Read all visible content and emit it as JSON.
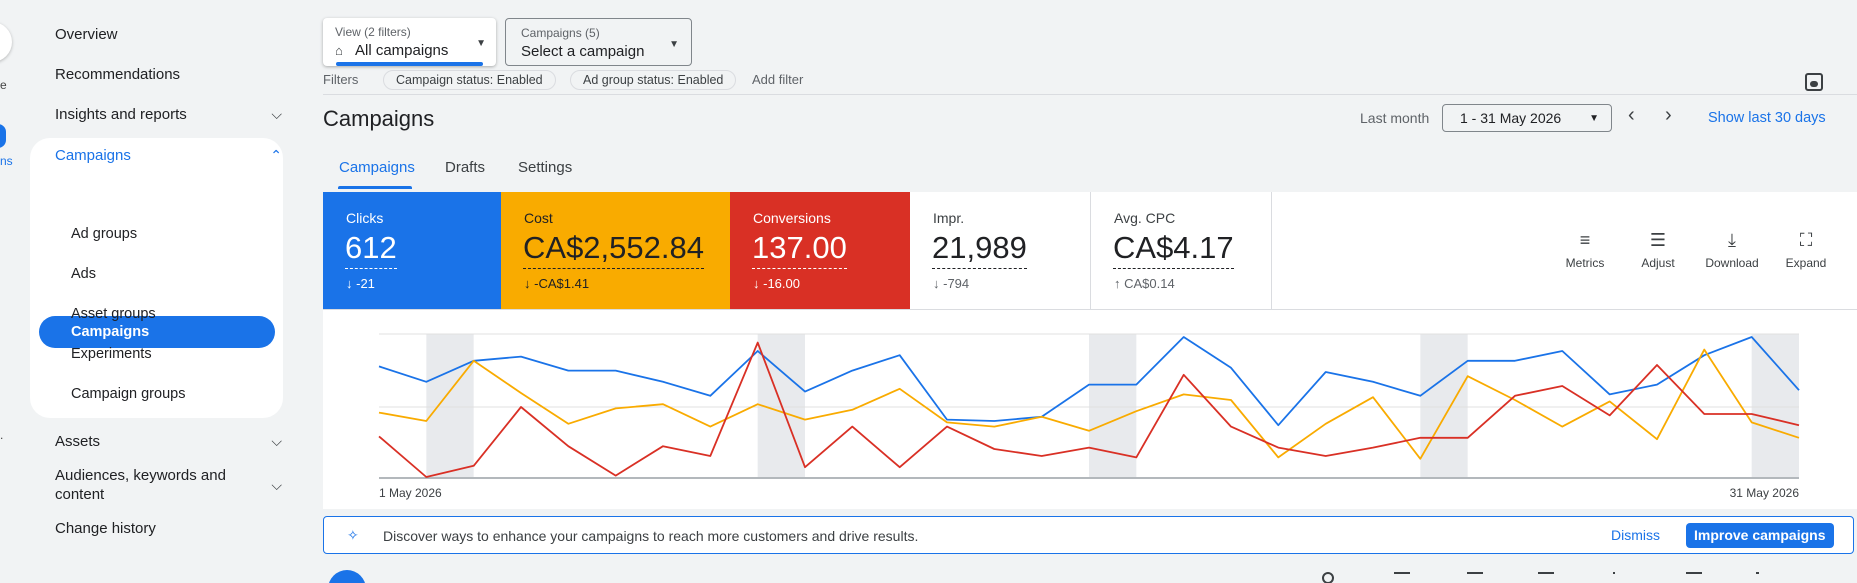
{
  "rail": {
    "text1": "e",
    "text2": "ns",
    "text3": "."
  },
  "sidebar": {
    "overview": "Overview",
    "recommendations": "Recommendations",
    "insights": "Insights and reports",
    "campaigns_group": "Campaigns",
    "sub_items": [
      "Campaigns",
      "Ad groups",
      "Ads",
      "Asset groups",
      "Experiments",
      "Campaign groups"
    ],
    "assets": "Assets",
    "audiences": [
      "Audiences, keywords and",
      "content"
    ],
    "change_history": "Change history"
  },
  "view_selector": {
    "label": "View (2 filters)",
    "value": "All campaigns"
  },
  "campaign_selector": {
    "label": "Campaigns (5)",
    "value": "Select a campaign"
  },
  "filters": {
    "label": "Filters",
    "chips": [
      "Campaign status: Enabled",
      "Ad group status: Enabled"
    ],
    "add": "Add filter"
  },
  "header": {
    "title": "Campaigns",
    "range_label": "Last month",
    "date_range": "1 - 31 May 2026",
    "show_last": "Show last 30 days"
  },
  "tabs": [
    "Campaigns",
    "Drafts",
    "Settings"
  ],
  "scorecards": [
    {
      "name": "Clicks",
      "value": "612",
      "delta": "-21",
      "direction": "down",
      "color": "#1a73e8"
    },
    {
      "name": "Cost",
      "value": "CA$2,552.84",
      "delta": "-CA$1.41",
      "direction": "down",
      "color": "#f9ab00"
    },
    {
      "name": "Conversions",
      "value": "137.00",
      "delta": "-16.00",
      "direction": "down",
      "color": "#d93025"
    },
    {
      "name": "Impr.",
      "value": "21,989",
      "delta": "-794",
      "direction": "down",
      "color": "#ffffff"
    },
    {
      "name": "Avg. CPC",
      "value": "CA$4.17",
      "delta": "CA$0.14",
      "direction": "up",
      "color": "#ffffff"
    }
  ],
  "tools": [
    "Metrics",
    "Adjust",
    "Download",
    "Expand"
  ],
  "chart_data": {
    "type": "line",
    "x_start_label": "1 May 2026",
    "x_end_label": "31 May 2026",
    "days": 31,
    "weekend_bands": [
      2,
      9,
      16,
      23,
      30
    ],
    "ylim": [
      0,
      1
    ],
    "series": [
      {
        "color": "#1a73e8",
        "values": [
          0.79,
          0.68,
          0.83,
          0.86,
          0.76,
          0.76,
          0.68,
          0.58,
          0.9,
          0.61,
          0.76,
          0.87,
          0.41,
          0.4,
          0.43,
          0.66,
          0.66,
          1.0,
          0.78,
          0.37,
          0.75,
          0.68,
          0.58,
          0.83,
          0.83,
          0.9,
          0.59,
          0.66,
          0.87,
          1.0,
          0.62
        ]
      },
      {
        "color": "#f9ab00",
        "values": [
          0.46,
          0.4,
          0.83,
          0.6,
          0.38,
          0.49,
          0.52,
          0.36,
          0.52,
          0.41,
          0.48,
          0.63,
          0.39,
          0.36,
          0.43,
          0.33,
          0.47,
          0.59,
          0.55,
          0.14,
          0.38,
          0.57,
          0.13,
          0.72,
          0.55,
          0.36,
          0.54,
          0.27,
          0.91,
          0.39,
          0.28
        ]
      },
      {
        "color": "#d93025",
        "values": [
          0.29,
          0.0,
          0.08,
          0.5,
          0.22,
          0.01,
          0.22,
          0.15,
          0.96,
          0.07,
          0.36,
          0.07,
          0.36,
          0.2,
          0.15,
          0.21,
          0.14,
          0.73,
          0.36,
          0.21,
          0.15,
          0.21,
          0.28,
          0.28,
          0.58,
          0.65,
          0.44,
          0.8,
          0.45,
          0.45,
          0.37
        ]
      }
    ]
  },
  "banner": {
    "message": "Discover ways to enhance your campaigns to reach more customers and drive results.",
    "dismiss": "Dismiss",
    "improve": "Improve campaigns"
  }
}
